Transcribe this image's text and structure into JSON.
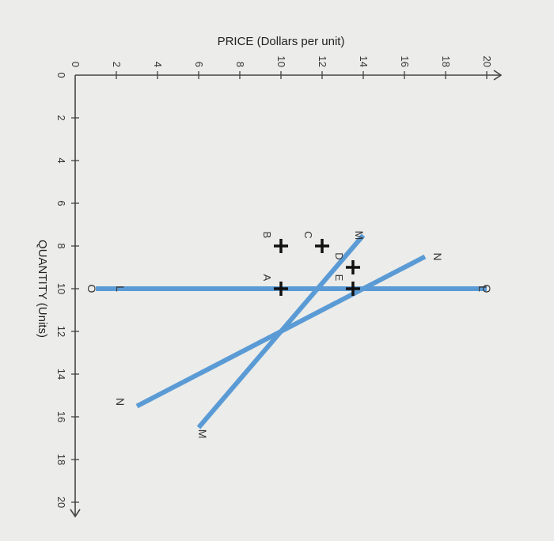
{
  "chart_data": {
    "type": "line",
    "title": "",
    "xlabel": "QUANTITY (Units)",
    "ylabel": "PRICE (Dollars per unit)",
    "xlim": [
      0,
      20
    ],
    "ylim": [
      0,
      20
    ],
    "x_ticks": [
      "0",
      "2",
      "4",
      "6",
      "8",
      "10",
      "12",
      "14",
      "16",
      "18",
      "20"
    ],
    "y_ticks": [
      "0",
      "2",
      "4",
      "6",
      "8",
      "10",
      "12",
      "14",
      "16",
      "18",
      "20"
    ],
    "line_color": "#5b9bd5",
    "series": [
      {
        "name": "L",
        "x": [
          10,
          10
        ],
        "y": [
          3,
          19
        ]
      },
      {
        "name": "M",
        "x": [
          7.5,
          16.5
        ],
        "y": [
          14,
          6
        ]
      },
      {
        "name": "N",
        "x": [
          8.5,
          15.5
        ],
        "y": [
          17,
          3
        ]
      },
      {
        "name": "O",
        "x": [
          10,
          10
        ],
        "y": [
          1,
          20
        ]
      }
    ],
    "curve_labels": [
      {
        "text": "L",
        "x": 10,
        "y": 2.5,
        "anchor": "start"
      },
      {
        "text": "L",
        "x": 10,
        "y": 19.5,
        "anchor": "end"
      },
      {
        "text": "M",
        "x": 7.5,
        "y": 13.5,
        "anchor": "end"
      },
      {
        "text": "M",
        "x": 16.8,
        "y": 6.5,
        "anchor": "start"
      },
      {
        "text": "N",
        "x": 8.5,
        "y": 17.3,
        "anchor": "end"
      },
      {
        "text": "N",
        "x": 15.3,
        "y": 2.5,
        "anchor": "start"
      },
      {
        "text": "O",
        "x": 10,
        "y": 0.5,
        "anchor": "end"
      },
      {
        "text": "O",
        "x": 10,
        "y": 20.3,
        "anchor": "start"
      }
    ],
    "points": [
      {
        "label": "A",
        "x": 10,
        "y": 10
      },
      {
        "label": "B",
        "x": 8,
        "y": 10
      },
      {
        "label": "C",
        "x": 8,
        "y": 12
      },
      {
        "label": "D",
        "x": 9,
        "y": 13.5
      },
      {
        "label": "E",
        "x": 10,
        "y": 13.5
      }
    ],
    "grid": false
  }
}
